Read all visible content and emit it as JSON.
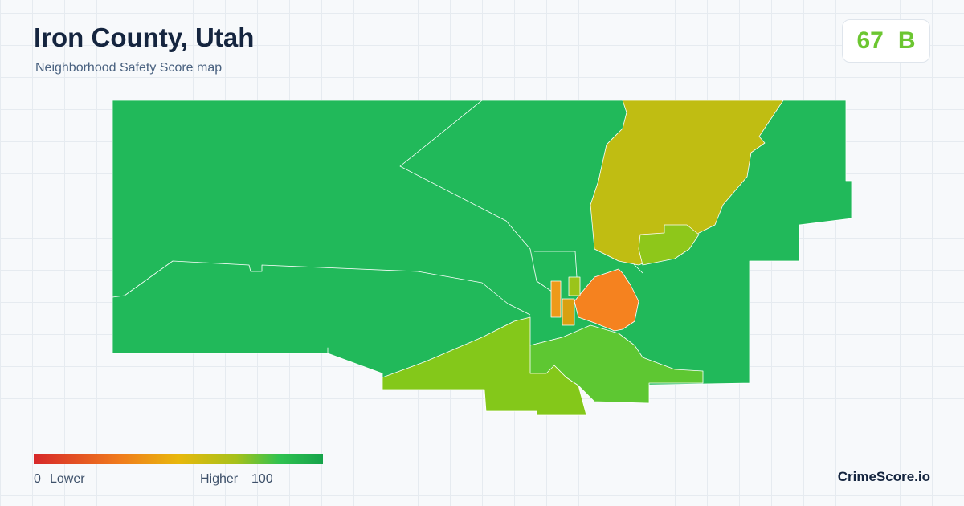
{
  "header": {
    "title": "Iron County, Utah",
    "subtitle": "Neighborhood Safety Score map"
  },
  "score": {
    "value": 67,
    "grade": "B"
  },
  "legend": {
    "min": 0,
    "min_label": "Lower",
    "max_label": "Higher",
    "max": 100
  },
  "brand": "CrimeScore.io"
}
